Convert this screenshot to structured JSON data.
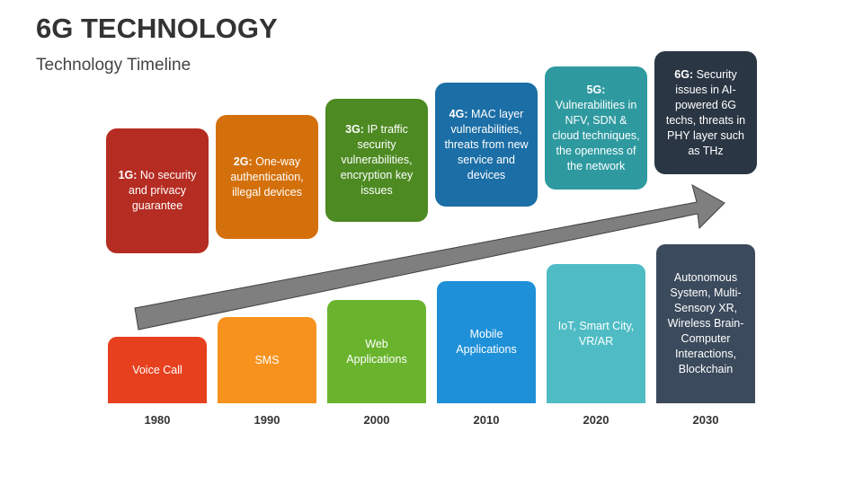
{
  "header": {
    "title": "6G TECHNOLOGY",
    "subtitle": "Technology Timeline"
  },
  "columns": [
    {
      "label": "1G:",
      "text": "No security and privacy guarantee",
      "application": "Voice Call",
      "year": "1980"
    },
    {
      "label": "2G:",
      "text": "One-way authentication, illegal devices",
      "application": "SMS",
      "year": "1990"
    },
    {
      "label": "3G:",
      "text": "IP traffic security vulnerabilities, encryption key issues",
      "application": "Web Applications",
      "year": "2000"
    },
    {
      "label": "4G:",
      "text": "MAC layer vulnerabilities, threats from new service and devices",
      "application": "Mobile Applications",
      "year": "2010"
    },
    {
      "label": "5G:",
      "text": "Vulnerabilities in NFV, SDN & cloud techniques, the openness of the network",
      "application": "IoT, Smart City, VR/AR",
      "year": "2020"
    },
    {
      "label": "6G:",
      "text": "Security issues in AI-powered 6G techs, threats in PHY layer such as THz",
      "application": "Autonomous System, Multi-Sensory XR, Wireless Brain-Computer Interactions, Blockchain",
      "year": "2030"
    }
  ]
}
